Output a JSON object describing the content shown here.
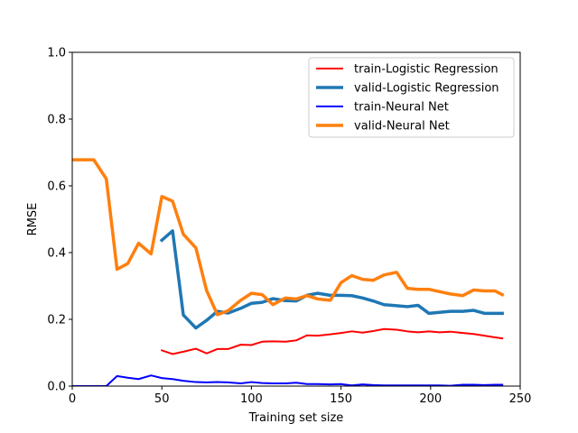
{
  "chart_data": {
    "type": "line",
    "title": "",
    "xlabel": "Training set size",
    "ylabel": "RMSE",
    "xlim": [
      0,
      250
    ],
    "ylim": [
      0.0,
      1.0
    ],
    "xticks": [
      "0",
      "50",
      "100",
      "150",
      "200",
      "250"
    ],
    "yticks": [
      "0.0",
      "0.2",
      "0.4",
      "0.6",
      "0.8",
      "1.0"
    ],
    "grid": false,
    "legend_position": "upper-right",
    "series": [
      {
        "name": "train-Logistic Regression",
        "color": "#ff0000",
        "width": "thin",
        "x": [
          50,
          56,
          62,
          69,
          75,
          81,
          87,
          94,
          100,
          106,
          112,
          119,
          125,
          131,
          137,
          144,
          150,
          156,
          162,
          168,
          174,
          181,
          187,
          193,
          199,
          205,
          211,
          218,
          224,
          230,
          236,
          240
        ],
        "y": [
          0.107,
          0.096,
          0.103,
          0.112,
          0.098,
          0.111,
          0.111,
          0.124,
          0.123,
          0.133,
          0.134,
          0.133,
          0.137,
          0.152,
          0.151,
          0.155,
          0.159,
          0.164,
          0.16,
          0.165,
          0.171,
          0.169,
          0.164,
          0.161,
          0.164,
          0.161,
          0.163,
          0.159,
          0.156,
          0.151,
          0.146,
          0.143
        ]
      },
      {
        "name": "valid-Logistic Regression",
        "color": "#1f77b4",
        "width": "thick",
        "x": [
          50,
          56,
          62,
          69,
          75,
          81,
          87,
          94,
          100,
          106,
          112,
          119,
          125,
          131,
          137,
          144,
          150,
          156,
          162,
          168,
          174,
          181,
          187,
          193,
          199,
          205,
          211,
          218,
          224,
          230,
          236,
          240
        ],
        "y": [
          0.437,
          0.465,
          0.213,
          0.174,
          0.197,
          0.224,
          0.219,
          0.233,
          0.248,
          0.251,
          0.262,
          0.256,
          0.255,
          0.272,
          0.278,
          0.272,
          0.272,
          0.271,
          0.264,
          0.255,
          0.244,
          0.241,
          0.238,
          0.242,
          0.218,
          0.221,
          0.224,
          0.224,
          0.227,
          0.218,
          0.218,
          0.218
        ]
      },
      {
        "name": "train-Neural Net",
        "color": "#0000ff",
        "width": "thin",
        "x": [
          0,
          6,
          12,
          19,
          25,
          31,
          37,
          44,
          50,
          56,
          62,
          69,
          75,
          81,
          87,
          94,
          100,
          106,
          112,
          119,
          125,
          131,
          137,
          144,
          150,
          156,
          162,
          168,
          174,
          181,
          187,
          193,
          199,
          205,
          211,
          218,
          224,
          230,
          236,
          240
        ],
        "y": [
          0.0,
          0.0,
          0.0,
          0.0,
          0.03,
          0.025,
          0.021,
          0.032,
          0.024,
          0.021,
          0.016,
          0.012,
          0.011,
          0.012,
          0.011,
          0.008,
          0.012,
          0.009,
          0.008,
          0.008,
          0.01,
          0.006,
          0.006,
          0.005,
          0.006,
          0.002,
          0.005,
          0.003,
          0.002,
          0.002,
          0.002,
          0.002,
          0.002,
          0.002,
          0.001,
          0.004,
          0.004,
          0.003,
          0.004,
          0.004
        ]
      },
      {
        "name": "valid-Neural Net",
        "color": "#ff7f0e",
        "width": "thick",
        "x": [
          0,
          6,
          12,
          19,
          25,
          31,
          37,
          44,
          50,
          56,
          62,
          69,
          75,
          81,
          87,
          94,
          100,
          106,
          112,
          119,
          125,
          131,
          137,
          144,
          150,
          156,
          162,
          168,
          174,
          181,
          187,
          193,
          199,
          205,
          211,
          218,
          224,
          230,
          236,
          240
        ],
        "y": [
          0.678,
          0.678,
          0.678,
          0.621,
          0.35,
          0.367,
          0.428,
          0.396,
          0.568,
          0.554,
          0.455,
          0.414,
          0.286,
          0.214,
          0.226,
          0.257,
          0.278,
          0.274,
          0.244,
          0.264,
          0.261,
          0.271,
          0.261,
          0.257,
          0.31,
          0.331,
          0.32,
          0.317,
          0.333,
          0.341,
          0.293,
          0.29,
          0.29,
          0.283,
          0.276,
          0.271,
          0.288,
          0.285,
          0.285,
          0.274
        ]
      }
    ]
  }
}
